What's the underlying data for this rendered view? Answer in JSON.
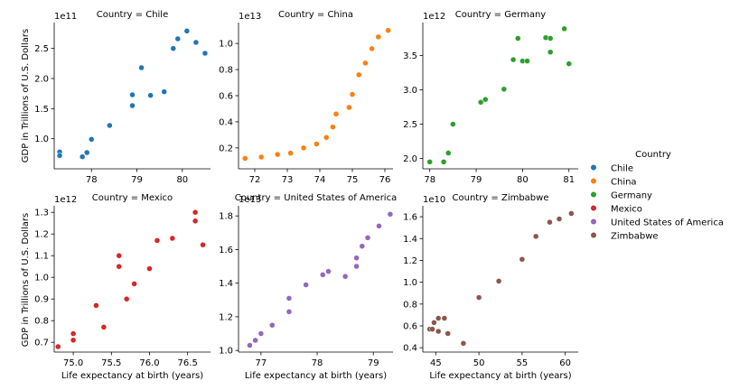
{
  "chart_data": {
    "type": "scatter",
    "facet_title_prefix": "Country = ",
    "xlabel": "Life expectancy at birth (years)",
    "ylabel": "GDP in Trillions of U.S. Dollars",
    "legend": {
      "title": "Country",
      "placement": "right",
      "entries": [
        "Chile",
        "China",
        "Germany",
        "Mexico",
        "United States of America",
        "Zimbabwe"
      ]
    },
    "colors": {
      "Chile": "#1f77b4",
      "China": "#ff7f0e",
      "Germany": "#2ca02c",
      "Mexico": "#d62728",
      "United States of America": "#9467bd",
      "Zimbabwe": "#8c564b"
    },
    "grid": false,
    "panels": [
      {
        "country": "Chile",
        "title": "Country = Chile",
        "offset_label": "1e11",
        "xlim": [
          77.18,
          80.62
        ],
        "ylim": [
          0.5,
          2.93
        ],
        "xticks": [
          78,
          79,
          80
        ],
        "xtick_labels": [
          "78",
          "79",
          "80"
        ],
        "yticks": [
          1.0,
          1.5,
          2.0,
          2.5
        ],
        "ytick_labels": [
          "1.0",
          "1.5",
          "2.0",
          "2.5"
        ],
        "points": [
          [
            77.3,
            0.78
          ],
          [
            77.3,
            0.72
          ],
          [
            77.8,
            0.7
          ],
          [
            77.9,
            0.77
          ],
          [
            78.0,
            0.99
          ],
          [
            78.4,
            1.22
          ],
          [
            78.9,
            1.73
          ],
          [
            78.9,
            1.55
          ],
          [
            79.1,
            2.18
          ],
          [
            79.3,
            1.72
          ],
          [
            79.6,
            1.78
          ],
          [
            79.8,
            2.5
          ],
          [
            79.9,
            2.66
          ],
          [
            80.1,
            2.79
          ],
          [
            80.3,
            2.6
          ],
          [
            80.5,
            2.42
          ]
        ]
      },
      {
        "country": "China",
        "title": "Country = China",
        "offset_label": "1e13",
        "xlim": [
          71.5,
          76.25
        ],
        "ylim": [
          0.04,
          1.16
        ],
        "xticks": [
          72,
          73,
          74,
          75,
          76
        ],
        "xtick_labels": [
          "72",
          "73",
          "74",
          "75",
          "76"
        ],
        "yticks": [
          0.2,
          0.4,
          0.6,
          0.8,
          1.0
        ],
        "ytick_labels": [
          "0.2",
          "0.4",
          "0.6",
          "0.8",
          "1.0"
        ],
        "points": [
          [
            71.7,
            0.12
          ],
          [
            72.2,
            0.13
          ],
          [
            72.7,
            0.15
          ],
          [
            73.1,
            0.16
          ],
          [
            73.5,
            0.2
          ],
          [
            73.9,
            0.23
          ],
          [
            74.2,
            0.28
          ],
          [
            74.4,
            0.36
          ],
          [
            74.5,
            0.46
          ],
          [
            74.9,
            0.51
          ],
          [
            75.0,
            0.61
          ],
          [
            75.2,
            0.76
          ],
          [
            75.4,
            0.85
          ],
          [
            75.6,
            0.96
          ],
          [
            75.8,
            1.05
          ],
          [
            76.1,
            1.1
          ]
        ]
      },
      {
        "country": "Germany",
        "title": "Country = Germany",
        "offset_label": "1e12",
        "xlim": [
          77.85,
          81.2
        ],
        "ylim": [
          1.85,
          3.98
        ],
        "xticks": [
          78,
          79,
          80,
          81
        ],
        "xtick_labels": [
          "78",
          "79",
          "80",
          "81"
        ],
        "yticks": [
          2.0,
          2.5,
          3.0,
          3.5
        ],
        "ytick_labels": [
          "2.0",
          "2.5",
          "3.0",
          "3.5"
        ],
        "points": [
          [
            78.0,
            1.95
          ],
          [
            78.3,
            1.95
          ],
          [
            78.4,
            2.08
          ],
          [
            78.5,
            2.5
          ],
          [
            79.1,
            2.82
          ],
          [
            79.2,
            2.86
          ],
          [
            79.6,
            3.01
          ],
          [
            79.8,
            3.44
          ],
          [
            79.9,
            3.75
          ],
          [
            80.0,
            3.42
          ],
          [
            80.1,
            3.42
          ],
          [
            80.5,
            3.76
          ],
          [
            80.6,
            3.75
          ],
          [
            80.6,
            3.55
          ],
          [
            80.9,
            3.89
          ],
          [
            81.0,
            3.38
          ]
        ]
      },
      {
        "country": "Mexico",
        "title": "Country = Mexico",
        "offset_label": "1e12",
        "xlim": [
          74.75,
          76.8
        ],
        "ylim": [
          0.655,
          1.33
        ],
        "xticks": [
          75.0,
          75.5,
          76.0,
          76.5
        ],
        "xtick_labels": [
          "75.0",
          "75.5",
          "76.0",
          "76.5"
        ],
        "yticks": [
          0.7,
          0.8,
          0.9,
          1.0,
          1.1,
          1.2,
          1.3
        ],
        "ytick_labels": [
          "0.7",
          "0.8",
          "0.9",
          "1.0",
          "1.1",
          "1.2",
          "1.3"
        ],
        "points": [
          [
            74.8,
            0.68
          ],
          [
            75.0,
            0.74
          ],
          [
            75.0,
            0.71
          ],
          [
            75.3,
            0.87
          ],
          [
            75.4,
            0.77
          ],
          [
            75.6,
            1.1
          ],
          [
            75.6,
            1.05
          ],
          [
            75.7,
            0.9
          ],
          [
            75.8,
            0.97
          ],
          [
            76.0,
            1.04
          ],
          [
            76.1,
            1.17
          ],
          [
            76.3,
            1.18
          ],
          [
            76.6,
            1.3
          ],
          [
            76.6,
            1.26
          ],
          [
            76.7,
            1.15
          ]
        ]
      },
      {
        "country": "United States of America",
        "title": "Country = United States of America",
        "offset_label": "1e13",
        "xlim": [
          76.6,
          79.35
        ],
        "ylim": [
          0.99,
          1.86
        ],
        "xticks": [
          77,
          78,
          79
        ],
        "xtick_labels": [
          "77",
          "78",
          "79"
        ],
        "yticks": [
          1.0,
          1.2,
          1.4,
          1.6,
          1.8
        ],
        "ytick_labels": [
          "1.0",
          "1.2",
          "1.4",
          "1.6",
          "1.8"
        ],
        "points": [
          [
            76.8,
            1.03
          ],
          [
            76.9,
            1.06
          ],
          [
            77.0,
            1.1
          ],
          [
            77.2,
            1.15
          ],
          [
            77.5,
            1.23
          ],
          [
            77.5,
            1.31
          ],
          [
            77.8,
            1.39
          ],
          [
            78.1,
            1.45
          ],
          [
            78.2,
            1.47
          ],
          [
            78.5,
            1.44
          ],
          [
            78.7,
            1.55
          ],
          [
            78.7,
            1.5
          ],
          [
            78.8,
            1.62
          ],
          [
            78.9,
            1.67
          ],
          [
            79.1,
            1.74
          ],
          [
            79.3,
            1.81
          ]
        ]
      },
      {
        "country": "Zimbabwe",
        "title": "Country = Zimbabwe",
        "offset_label": "1e10",
        "xlim": [
          43.5,
          61.5
        ],
        "ylim": [
          0.36,
          1.7
        ],
        "xticks": [
          45,
          50,
          55,
          60
        ],
        "xtick_labels": [
          "45",
          "50",
          "55",
          "60"
        ],
        "yticks": [
          0.4,
          0.6,
          0.8,
          1.0,
          1.2,
          1.4,
          1.6
        ],
        "ytick_labels": [
          "0.4",
          "0.6",
          "0.8",
          "1.0",
          "1.2",
          "1.4",
          "1.6"
        ],
        "points": [
          [
            44.3,
            0.57
          ],
          [
            44.6,
            0.57
          ],
          [
            44.8,
            0.63
          ],
          [
            45.3,
            0.67
          ],
          [
            45.3,
            0.55
          ],
          [
            46.0,
            0.67
          ],
          [
            46.4,
            0.53
          ],
          [
            48.2,
            0.44
          ],
          [
            50.0,
            0.86
          ],
          [
            52.3,
            1.01
          ],
          [
            55.0,
            1.21
          ],
          [
            56.6,
            1.42
          ],
          [
            58.2,
            1.55
          ],
          [
            59.3,
            1.58
          ],
          [
            60.7,
            1.63
          ]
        ]
      }
    ]
  }
}
